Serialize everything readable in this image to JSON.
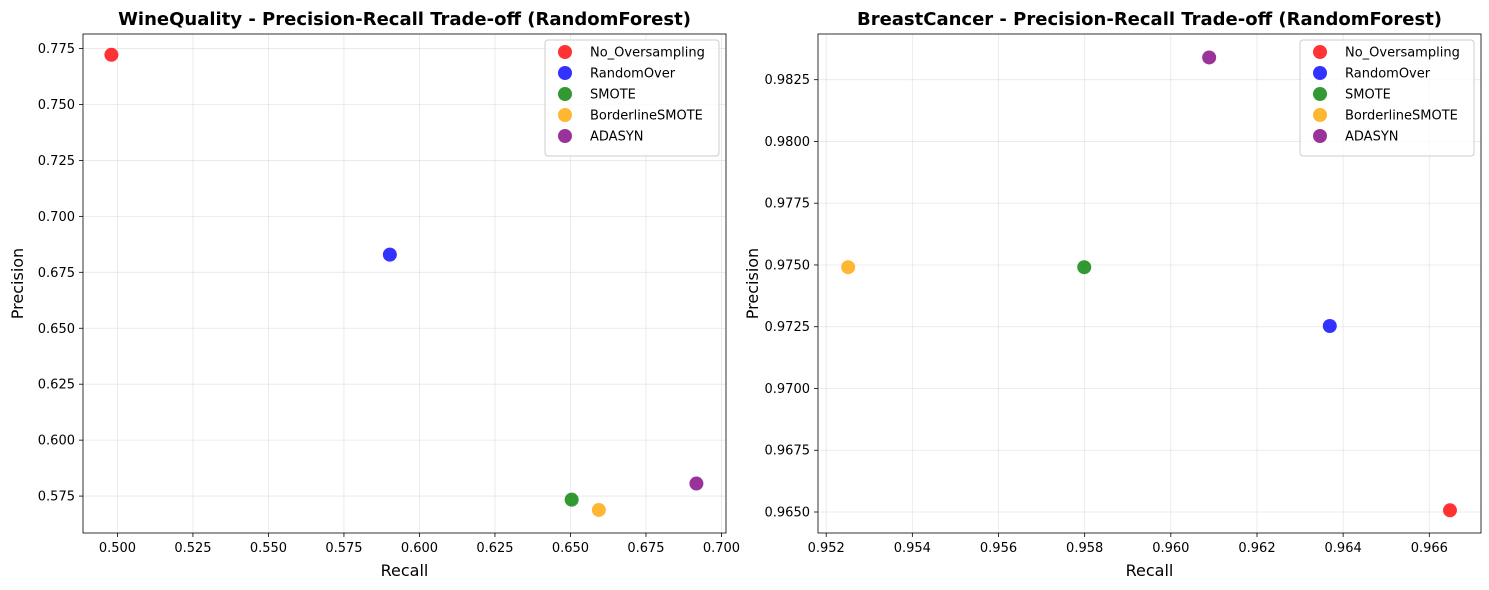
{
  "chart_data": [
    {
      "type": "scatter",
      "title": "WineQuality - Precision-Recall Trade-off (RandomForest)",
      "xlabel": "Recall",
      "ylabel": "Precision",
      "xlim": [
        0.4886,
        0.7015
      ],
      "ylim": [
        0.5585,
        0.7815
      ],
      "xticks": [
        0.5,
        0.525,
        0.55,
        0.575,
        0.6,
        0.625,
        0.65,
        0.675,
        0.7
      ],
      "xtick_labels": [
        "0.500",
        "0.525",
        "0.550",
        "0.575",
        "0.600",
        "0.625",
        "0.650",
        "0.675",
        "0.700"
      ],
      "yticks": [
        0.575,
        0.6,
        0.625,
        0.65,
        0.675,
        0.7,
        0.725,
        0.75,
        0.775
      ],
      "ytick_labels": [
        "0.575",
        "0.600",
        "0.625",
        "0.650",
        "0.675",
        "0.700",
        "0.725",
        "0.750",
        "0.775"
      ],
      "grid": true,
      "legend_position": "top-right",
      "series": [
        {
          "name": "No_Oversampling",
          "color": "#ff0000",
          "x": 0.498,
          "y": 0.7722
        },
        {
          "name": "RandomOver",
          "color": "#0000ff",
          "x": 0.5902,
          "y": 0.6829
        },
        {
          "name": "SMOTE",
          "color": "#008000",
          "x": 0.6504,
          "y": 0.5734
        },
        {
          "name": "BorderlineSMOTE",
          "color": "#ffa500",
          "x": 0.6594,
          "y": 0.5688
        },
        {
          "name": "ADASYN",
          "color": "#800080",
          "x": 0.6917,
          "y": 0.5806
        }
      ]
    },
    {
      "type": "scatter",
      "title": "BreastCancer - Precision-Recall Trade-off (RandomForest)",
      "xlabel": "Recall",
      "ylabel": "Precision",
      "xlim": [
        0.95181,
        0.9672
      ],
      "ylim": [
        0.96415,
        0.98435
      ],
      "xticks": [
        0.952,
        0.954,
        0.956,
        0.958,
        0.96,
        0.962,
        0.964,
        0.966
      ],
      "xtick_labels": [
        "0.952",
        "0.954",
        "0.956",
        "0.958",
        "0.960",
        "0.962",
        "0.964",
        "0.966"
      ],
      "yticks": [
        0.965,
        0.9675,
        0.97,
        0.9725,
        0.975,
        0.9775,
        0.98,
        0.9825
      ],
      "ytick_labels": [
        "0.9650",
        "0.9675",
        "0.9700",
        "0.9725",
        "0.9750",
        "0.9775",
        "0.9800",
        "0.9825"
      ],
      "grid": true,
      "legend_position": "top-right",
      "series": [
        {
          "name": "No_Oversampling",
          "color": "#ff0000",
          "x": 0.96648,
          "y": 0.96507
        },
        {
          "name": "RandomOver",
          "color": "#0000ff",
          "x": 0.96369,
          "y": 0.97253
        },
        {
          "name": "SMOTE",
          "color": "#008000",
          "x": 0.95799,
          "y": 0.97491
        },
        {
          "name": "BorderlineSMOTE",
          "color": "#ffa500",
          "x": 0.95251,
          "y": 0.97491
        },
        {
          "name": "ADASYN",
          "color": "#800080",
          "x": 0.96089,
          "y": 0.9834
        }
      ]
    }
  ]
}
